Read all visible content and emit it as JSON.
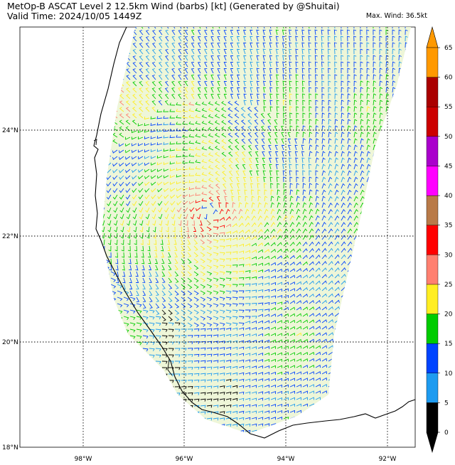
{
  "title_line1": "MetOp-B ASCAT Level 2 12.5km Wind (barbs) [kt] (Generated by @Shuitai)",
  "title_line2": "Valid Time: 2024/10/05 1449Z",
  "max_wind": "Max. Wind: 36.5kt",
  "map": {
    "lat_labels": [
      "24°N",
      "22°N",
      "20°N",
      "18°N"
    ],
    "lon_labels": [
      "98°W",
      "96°W",
      "94°W",
      "92°W"
    ],
    "grid_style": "dotted",
    "land_outline": true,
    "storm_center_label": ""
  },
  "colorbar": {
    "labels": [
      "0",
      "5",
      "10",
      "15",
      "20",
      "25",
      "30",
      "35",
      "40",
      "45",
      "50",
      "55",
      "60",
      "65"
    ],
    "colors": [
      "#000000",
      "#1e9bf0",
      "#0044ff",
      "#00cc00",
      "#ffee22",
      "#ff8070",
      "#ff0000",
      "#b97a48",
      "#ff00ff",
      "#aa00cc",
      "#cc0000",
      "#aa0000",
      "#ff9900"
    ],
    "extend": "both"
  }
}
